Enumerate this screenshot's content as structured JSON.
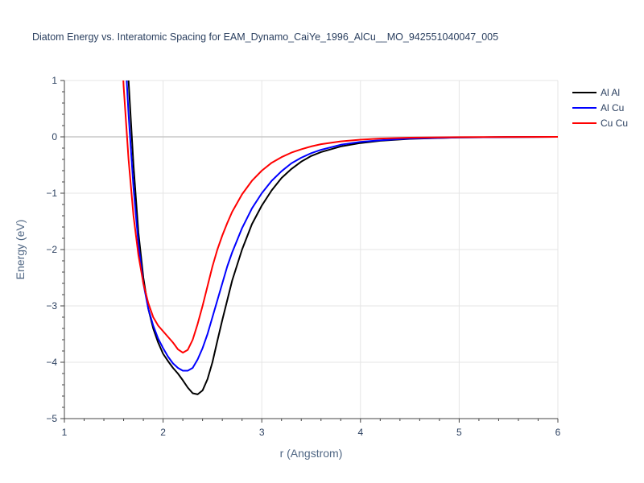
{
  "chart_data": {
    "type": "line",
    "title": "Diatom Energy vs. Interatomic Spacing for EAM_Dynamo_CaiYe_1996_AlCu__MO_942551040047_005",
    "xlabel": "r (Angstrom)",
    "ylabel": "Energy (eV)",
    "xlim": [
      1,
      6
    ],
    "ylim": [
      -5,
      1
    ],
    "x_ticks": [
      1,
      2,
      3,
      4,
      5,
      6
    ],
    "y_ticks": [
      1,
      0,
      -1,
      -2,
      -3,
      -4,
      -5
    ],
    "grid": true,
    "legend_position": "top-right",
    "series": [
      {
        "name": "Al Al",
        "color": "#000000",
        "points": [
          [
            1.6,
            2.5
          ],
          [
            1.65,
            1.0
          ],
          [
            1.7,
            -0.5
          ],
          [
            1.75,
            -1.7
          ],
          [
            1.8,
            -2.5
          ],
          [
            1.85,
            -3.05
          ],
          [
            1.9,
            -3.4
          ],
          [
            1.95,
            -3.65
          ],
          [
            2.0,
            -3.85
          ],
          [
            2.05,
            -3.98
          ],
          [
            2.1,
            -4.1
          ],
          [
            2.15,
            -4.2
          ],
          [
            2.2,
            -4.32
          ],
          [
            2.25,
            -4.45
          ],
          [
            2.3,
            -4.55
          ],
          [
            2.35,
            -4.57
          ],
          [
            2.4,
            -4.5
          ],
          [
            2.45,
            -4.3
          ],
          [
            2.5,
            -4.0
          ],
          [
            2.55,
            -3.62
          ],
          [
            2.6,
            -3.25
          ],
          [
            2.65,
            -2.9
          ],
          [
            2.7,
            -2.55
          ],
          [
            2.8,
            -2.0
          ],
          [
            2.9,
            -1.55
          ],
          [
            3.0,
            -1.22
          ],
          [
            3.1,
            -0.95
          ],
          [
            3.2,
            -0.73
          ],
          [
            3.3,
            -0.57
          ],
          [
            3.4,
            -0.44
          ],
          [
            3.5,
            -0.34
          ],
          [
            3.6,
            -0.27
          ],
          [
            3.8,
            -0.17
          ],
          [
            4.0,
            -0.11
          ],
          [
            4.2,
            -0.07
          ],
          [
            4.5,
            -0.035
          ],
          [
            5.0,
            -0.01
          ],
          [
            5.5,
            -0.003
          ],
          [
            6.0,
            0.0
          ]
        ]
      },
      {
        "name": "Al Cu",
        "color": "#0000ff",
        "points": [
          [
            1.6,
            2.0
          ],
          [
            1.65,
            0.4
          ],
          [
            1.7,
            -0.9
          ],
          [
            1.75,
            -1.9
          ],
          [
            1.8,
            -2.6
          ],
          [
            1.85,
            -3.05
          ],
          [
            1.9,
            -3.35
          ],
          [
            1.95,
            -3.58
          ],
          [
            2.0,
            -3.75
          ],
          [
            2.05,
            -3.9
          ],
          [
            2.1,
            -4.02
          ],
          [
            2.15,
            -4.1
          ],
          [
            2.2,
            -4.15
          ],
          [
            2.25,
            -4.15
          ],
          [
            2.3,
            -4.1
          ],
          [
            2.35,
            -3.95
          ],
          [
            2.4,
            -3.75
          ],
          [
            2.45,
            -3.5
          ],
          [
            2.5,
            -3.2
          ],
          [
            2.55,
            -2.9
          ],
          [
            2.6,
            -2.6
          ],
          [
            2.65,
            -2.3
          ],
          [
            2.7,
            -2.05
          ],
          [
            2.8,
            -1.62
          ],
          [
            2.9,
            -1.27
          ],
          [
            3.0,
            -1.0
          ],
          [
            3.1,
            -0.78
          ],
          [
            3.2,
            -0.61
          ],
          [
            3.3,
            -0.47
          ],
          [
            3.4,
            -0.37
          ],
          [
            3.5,
            -0.29
          ],
          [
            3.6,
            -0.23
          ],
          [
            3.8,
            -0.14
          ],
          [
            4.0,
            -0.09
          ],
          [
            4.2,
            -0.06
          ],
          [
            4.5,
            -0.03
          ],
          [
            5.0,
            -0.01
          ],
          [
            5.5,
            -0.003
          ],
          [
            6.0,
            0.0
          ]
        ]
      },
      {
        "name": "Cu Cu",
        "color": "#ff0000",
        "points": [
          [
            1.57,
            2.0
          ],
          [
            1.6,
            0.9
          ],
          [
            1.65,
            -0.4
          ],
          [
            1.7,
            -1.4
          ],
          [
            1.75,
            -2.1
          ],
          [
            1.8,
            -2.6
          ],
          [
            1.85,
            -2.95
          ],
          [
            1.9,
            -3.2
          ],
          [
            1.95,
            -3.35
          ],
          [
            2.0,
            -3.45
          ],
          [
            2.05,
            -3.55
          ],
          [
            2.1,
            -3.65
          ],
          [
            2.15,
            -3.77
          ],
          [
            2.2,
            -3.83
          ],
          [
            2.25,
            -3.78
          ],
          [
            2.3,
            -3.6
          ],
          [
            2.35,
            -3.32
          ],
          [
            2.4,
            -3.0
          ],
          [
            2.45,
            -2.65
          ],
          [
            2.5,
            -2.3
          ],
          [
            2.55,
            -2.0
          ],
          [
            2.6,
            -1.75
          ],
          [
            2.65,
            -1.53
          ],
          [
            2.7,
            -1.33
          ],
          [
            2.8,
            -1.02
          ],
          [
            2.9,
            -0.78
          ],
          [
            3.0,
            -0.6
          ],
          [
            3.1,
            -0.46
          ],
          [
            3.2,
            -0.36
          ],
          [
            3.3,
            -0.28
          ],
          [
            3.4,
            -0.22
          ],
          [
            3.5,
            -0.17
          ],
          [
            3.6,
            -0.13
          ],
          [
            3.8,
            -0.08
          ],
          [
            4.0,
            -0.05
          ],
          [
            4.2,
            -0.03
          ],
          [
            4.5,
            -0.015
          ],
          [
            5.0,
            -0.005
          ],
          [
            5.5,
            -0.002
          ],
          [
            6.0,
            0.0
          ]
        ]
      }
    ]
  }
}
